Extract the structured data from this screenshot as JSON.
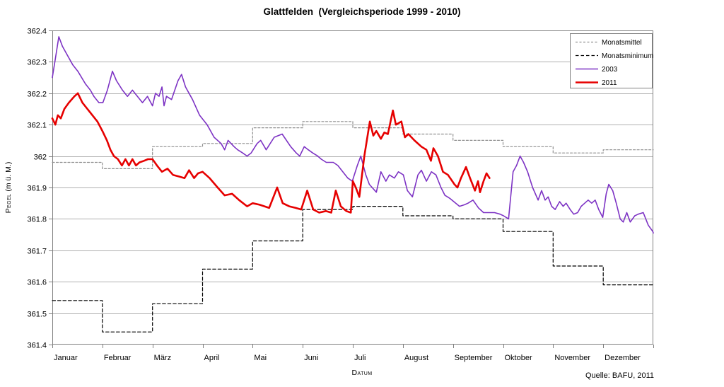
{
  "labels": {
    "xlabel": "Datum",
    "ylabel_main": "Pegel",
    "ylabel_unit": "(m ü. M.)",
    "source": "Quelle: BAFU, 2011"
  },
  "chart_data": {
    "type": "line",
    "title": "Glattfelden  (Vergleichsperiode 1999 - 2010)",
    "xlabel": "Datum",
    "ylabel": "Pegel (m ü. M.)",
    "ylim": [
      361.4,
      362.4
    ],
    "ytick_step": 0.1,
    "grid": "horizontal-only",
    "legend_position": "top-right",
    "x_unit_note": "daily series use fractional month position, 0 = 1. Januar, 12 = 31. Dezember",
    "categories": [
      "Januar",
      "Februar",
      "März",
      "April",
      "Mai",
      "Juni",
      "Juli",
      "August",
      "September",
      "Oktober",
      "November",
      "Dezember"
    ],
    "series": [
      {
        "name": "Monatsmittel",
        "style": "step-monthly",
        "color": "#8f8f8f",
        "dash": "3 2.5",
        "width": 1.2,
        "values": [
          361.98,
          361.96,
          362.03,
          362.04,
          362.09,
          362.11,
          362.09,
          362.07,
          362.05,
          362.03,
          362.01,
          362.02
        ]
      },
      {
        "name": "Monatsminimum",
        "style": "step-monthly",
        "color": "#000000",
        "dash": "4.5 3",
        "width": 1.2,
        "values": [
          361.54,
          361.44,
          361.53,
          361.64,
          361.73,
          361.83,
          361.84,
          361.81,
          361.8,
          361.76,
          361.65,
          361.59
        ]
      },
      {
        "name": "2003",
        "style": "daily",
        "color": "#7d33c4",
        "width": 1.6,
        "points": [
          [
            0,
            362.25
          ],
          [
            0.06,
            362.31
          ],
          [
            0.13,
            362.38
          ],
          [
            0.2,
            362.35
          ],
          [
            0.27,
            362.33
          ],
          [
            0.41,
            362.29
          ],
          [
            0.51,
            362.27
          ],
          [
            0.66,
            362.23
          ],
          [
            0.76,
            362.21
          ],
          [
            0.83,
            362.19
          ],
          [
            0.93,
            362.17
          ],
          [
            1.01,
            362.17
          ],
          [
            1.1,
            362.21
          ],
          [
            1.2,
            362.27
          ],
          [
            1.28,
            362.24
          ],
          [
            1.4,
            362.21
          ],
          [
            1.5,
            362.19
          ],
          [
            1.6,
            362.21
          ],
          [
            1.7,
            362.19
          ],
          [
            1.8,
            362.17
          ],
          [
            1.9,
            362.19
          ],
          [
            2,
            362.16
          ],
          [
            2.06,
            362.2
          ],
          [
            2.13,
            362.19
          ],
          [
            2.19,
            362.22
          ],
          [
            2.23,
            362.16
          ],
          [
            2.28,
            362.19
          ],
          [
            2.38,
            362.18
          ],
          [
            2.51,
            362.24
          ],
          [
            2.58,
            362.26
          ],
          [
            2.66,
            362.22
          ],
          [
            2.8,
            362.18
          ],
          [
            2.94,
            362.13
          ],
          [
            3.09,
            362.1
          ],
          [
            3.23,
            362.06
          ],
          [
            3.37,
            362.04
          ],
          [
            3.44,
            362.02
          ],
          [
            3.51,
            362.05
          ],
          [
            3.63,
            362.03
          ],
          [
            3.7,
            362.02
          ],
          [
            3.8,
            362.01
          ],
          [
            3.89,
            362
          ],
          [
            3.97,
            362.01
          ],
          [
            4.09,
            362.04
          ],
          [
            4.16,
            362.05
          ],
          [
            4.27,
            362.02
          ],
          [
            4.43,
            362.06
          ],
          [
            4.59,
            362.07
          ],
          [
            4.76,
            362.03
          ],
          [
            4.87,
            362.01
          ],
          [
            4.94,
            362
          ],
          [
            5.03,
            362.03
          ],
          [
            5.11,
            362.02
          ],
          [
            5.2,
            362.01
          ],
          [
            5.3,
            362
          ],
          [
            5.37,
            361.99
          ],
          [
            5.47,
            361.98
          ],
          [
            5.61,
            361.98
          ],
          [
            5.7,
            361.97
          ],
          [
            5.8,
            361.95
          ],
          [
            5.9,
            361.93
          ],
          [
            5.99,
            361.92
          ],
          [
            6.09,
            361.97
          ],
          [
            6.16,
            362
          ],
          [
            6.26,
            361.94
          ],
          [
            6.33,
            361.91
          ],
          [
            6.47,
            361.885
          ],
          [
            6.56,
            361.95
          ],
          [
            6.66,
            361.92
          ],
          [
            6.73,
            361.94
          ],
          [
            6.83,
            361.93
          ],
          [
            6.91,
            361.95
          ],
          [
            7.01,
            361.94
          ],
          [
            7.09,
            361.89
          ],
          [
            7.19,
            361.87
          ],
          [
            7.3,
            361.94
          ],
          [
            7.37,
            361.955
          ],
          [
            7.47,
            361.92
          ],
          [
            7.57,
            361.95
          ],
          [
            7.66,
            361.94
          ],
          [
            7.76,
            361.9
          ],
          [
            7.84,
            361.875
          ],
          [
            7.94,
            361.865
          ],
          [
            8.13,
            361.84
          ],
          [
            8.23,
            361.845
          ],
          [
            8.3,
            361.85
          ],
          [
            8.4,
            361.86
          ],
          [
            8.51,
            361.835
          ],
          [
            8.61,
            361.82
          ],
          [
            8.73,
            361.82
          ],
          [
            8.83,
            361.82
          ],
          [
            8.94,
            361.815
          ],
          [
            9.01,
            361.81
          ],
          [
            9.11,
            361.8
          ],
          [
            9.2,
            361.95
          ],
          [
            9.27,
            361.97
          ],
          [
            9.34,
            362
          ],
          [
            9.41,
            361.98
          ],
          [
            9.49,
            361.95
          ],
          [
            9.59,
            361.9
          ],
          [
            9.7,
            361.86
          ],
          [
            9.77,
            361.89
          ],
          [
            9.84,
            361.86
          ],
          [
            9.9,
            361.87
          ],
          [
            9.97,
            361.84
          ],
          [
            10.04,
            361.83
          ],
          [
            10.13,
            361.855
          ],
          [
            10.2,
            361.84
          ],
          [
            10.26,
            361.85
          ],
          [
            10.34,
            361.83
          ],
          [
            10.41,
            361.815
          ],
          [
            10.49,
            361.82
          ],
          [
            10.56,
            361.84
          ],
          [
            10.63,
            361.85
          ],
          [
            10.7,
            361.86
          ],
          [
            10.77,
            361.85
          ],
          [
            10.84,
            361.86
          ],
          [
            10.91,
            361.83
          ],
          [
            10.99,
            361.805
          ],
          [
            11.06,
            361.88
          ],
          [
            11.11,
            361.91
          ],
          [
            11.19,
            361.89
          ],
          [
            11.26,
            361.85
          ],
          [
            11.34,
            361.8
          ],
          [
            11.4,
            361.79
          ],
          [
            11.47,
            361.82
          ],
          [
            11.54,
            361.79
          ],
          [
            11.63,
            361.81
          ],
          [
            11.7,
            361.815
          ],
          [
            11.8,
            361.82
          ],
          [
            11.9,
            361.78
          ],
          [
            11.99,
            361.76
          ],
          [
            12,
            361.755
          ]
        ]
      },
      {
        "name": "2011",
        "style": "daily",
        "color": "#e60000",
        "width": 2.6,
        "points": [
          [
            0,
            362.12
          ],
          [
            0.06,
            362.1
          ],
          [
            0.11,
            362.13
          ],
          [
            0.17,
            362.12
          ],
          [
            0.24,
            362.15
          ],
          [
            0.33,
            362.17
          ],
          [
            0.44,
            362.19
          ],
          [
            0.51,
            362.2
          ],
          [
            0.6,
            362.17
          ],
          [
            0.7,
            362.15
          ],
          [
            0.8,
            362.13
          ],
          [
            0.9,
            362.11
          ],
          [
            1,
            362.08
          ],
          [
            1.09,
            362.05
          ],
          [
            1.16,
            362.02
          ],
          [
            1.23,
            362
          ],
          [
            1.31,
            361.99
          ],
          [
            1.39,
            361.97
          ],
          [
            1.46,
            361.99
          ],
          [
            1.53,
            361.97
          ],
          [
            1.6,
            361.99
          ],
          [
            1.67,
            361.97
          ],
          [
            1.74,
            361.98
          ],
          [
            1.83,
            361.985
          ],
          [
            1.91,
            361.99
          ],
          [
            2,
            361.99
          ],
          [
            2.09,
            361.97
          ],
          [
            2.19,
            361.95
          ],
          [
            2.3,
            361.96
          ],
          [
            2.41,
            361.94
          ],
          [
            2.53,
            361.935
          ],
          [
            2.64,
            361.93
          ],
          [
            2.73,
            361.955
          ],
          [
            2.83,
            361.93
          ],
          [
            2.91,
            361.945
          ],
          [
            3,
            361.95
          ],
          [
            3.14,
            361.93
          ],
          [
            3.3,
            361.9
          ],
          [
            3.44,
            361.875
          ],
          [
            3.59,
            361.88
          ],
          [
            3.73,
            361.86
          ],
          [
            3.89,
            361.84
          ],
          [
            4,
            361.85
          ],
          [
            4.14,
            361.845
          ],
          [
            4.33,
            361.835
          ],
          [
            4.49,
            361.9
          ],
          [
            4.6,
            361.85
          ],
          [
            4.73,
            361.84
          ],
          [
            4.86,
            361.835
          ],
          [
            4.97,
            361.83
          ],
          [
            5.09,
            361.89
          ],
          [
            5.21,
            361.83
          ],
          [
            5.33,
            361.82
          ],
          [
            5.46,
            361.825
          ],
          [
            5.57,
            361.82
          ],
          [
            5.66,
            361.89
          ],
          [
            5.76,
            361.84
          ],
          [
            5.87,
            361.825
          ],
          [
            5.96,
            361.82
          ],
          [
            6,
            361.92
          ],
          [
            6.06,
            361.9
          ],
          [
            6.13,
            361.87
          ],
          [
            6.23,
            362
          ],
          [
            6.34,
            362.11
          ],
          [
            6.41,
            362.065
          ],
          [
            6.47,
            362.08
          ],
          [
            6.56,
            362.055
          ],
          [
            6.63,
            362.075
          ],
          [
            6.7,
            362.07
          ],
          [
            6.8,
            362.145
          ],
          [
            6.86,
            362.1
          ],
          [
            6.97,
            362.11
          ],
          [
            7.04,
            362.06
          ],
          [
            7.11,
            362.07
          ],
          [
            7.23,
            362.05
          ],
          [
            7.37,
            362.03
          ],
          [
            7.47,
            362.02
          ],
          [
            7.56,
            361.985
          ],
          [
            7.61,
            362.025
          ],
          [
            7.7,
            362
          ],
          [
            7.8,
            361.95
          ],
          [
            7.9,
            361.94
          ],
          [
            8.03,
            361.91
          ],
          [
            8.09,
            361.9
          ],
          [
            8.16,
            361.93
          ],
          [
            8.26,
            361.965
          ],
          [
            8.34,
            361.93
          ],
          [
            8.44,
            361.89
          ],
          [
            8.5,
            361.92
          ],
          [
            8.54,
            361.885
          ],
          [
            8.61,
            361.92
          ],
          [
            8.67,
            361.945
          ],
          [
            8.73,
            361.93
          ]
        ]
      }
    ]
  }
}
